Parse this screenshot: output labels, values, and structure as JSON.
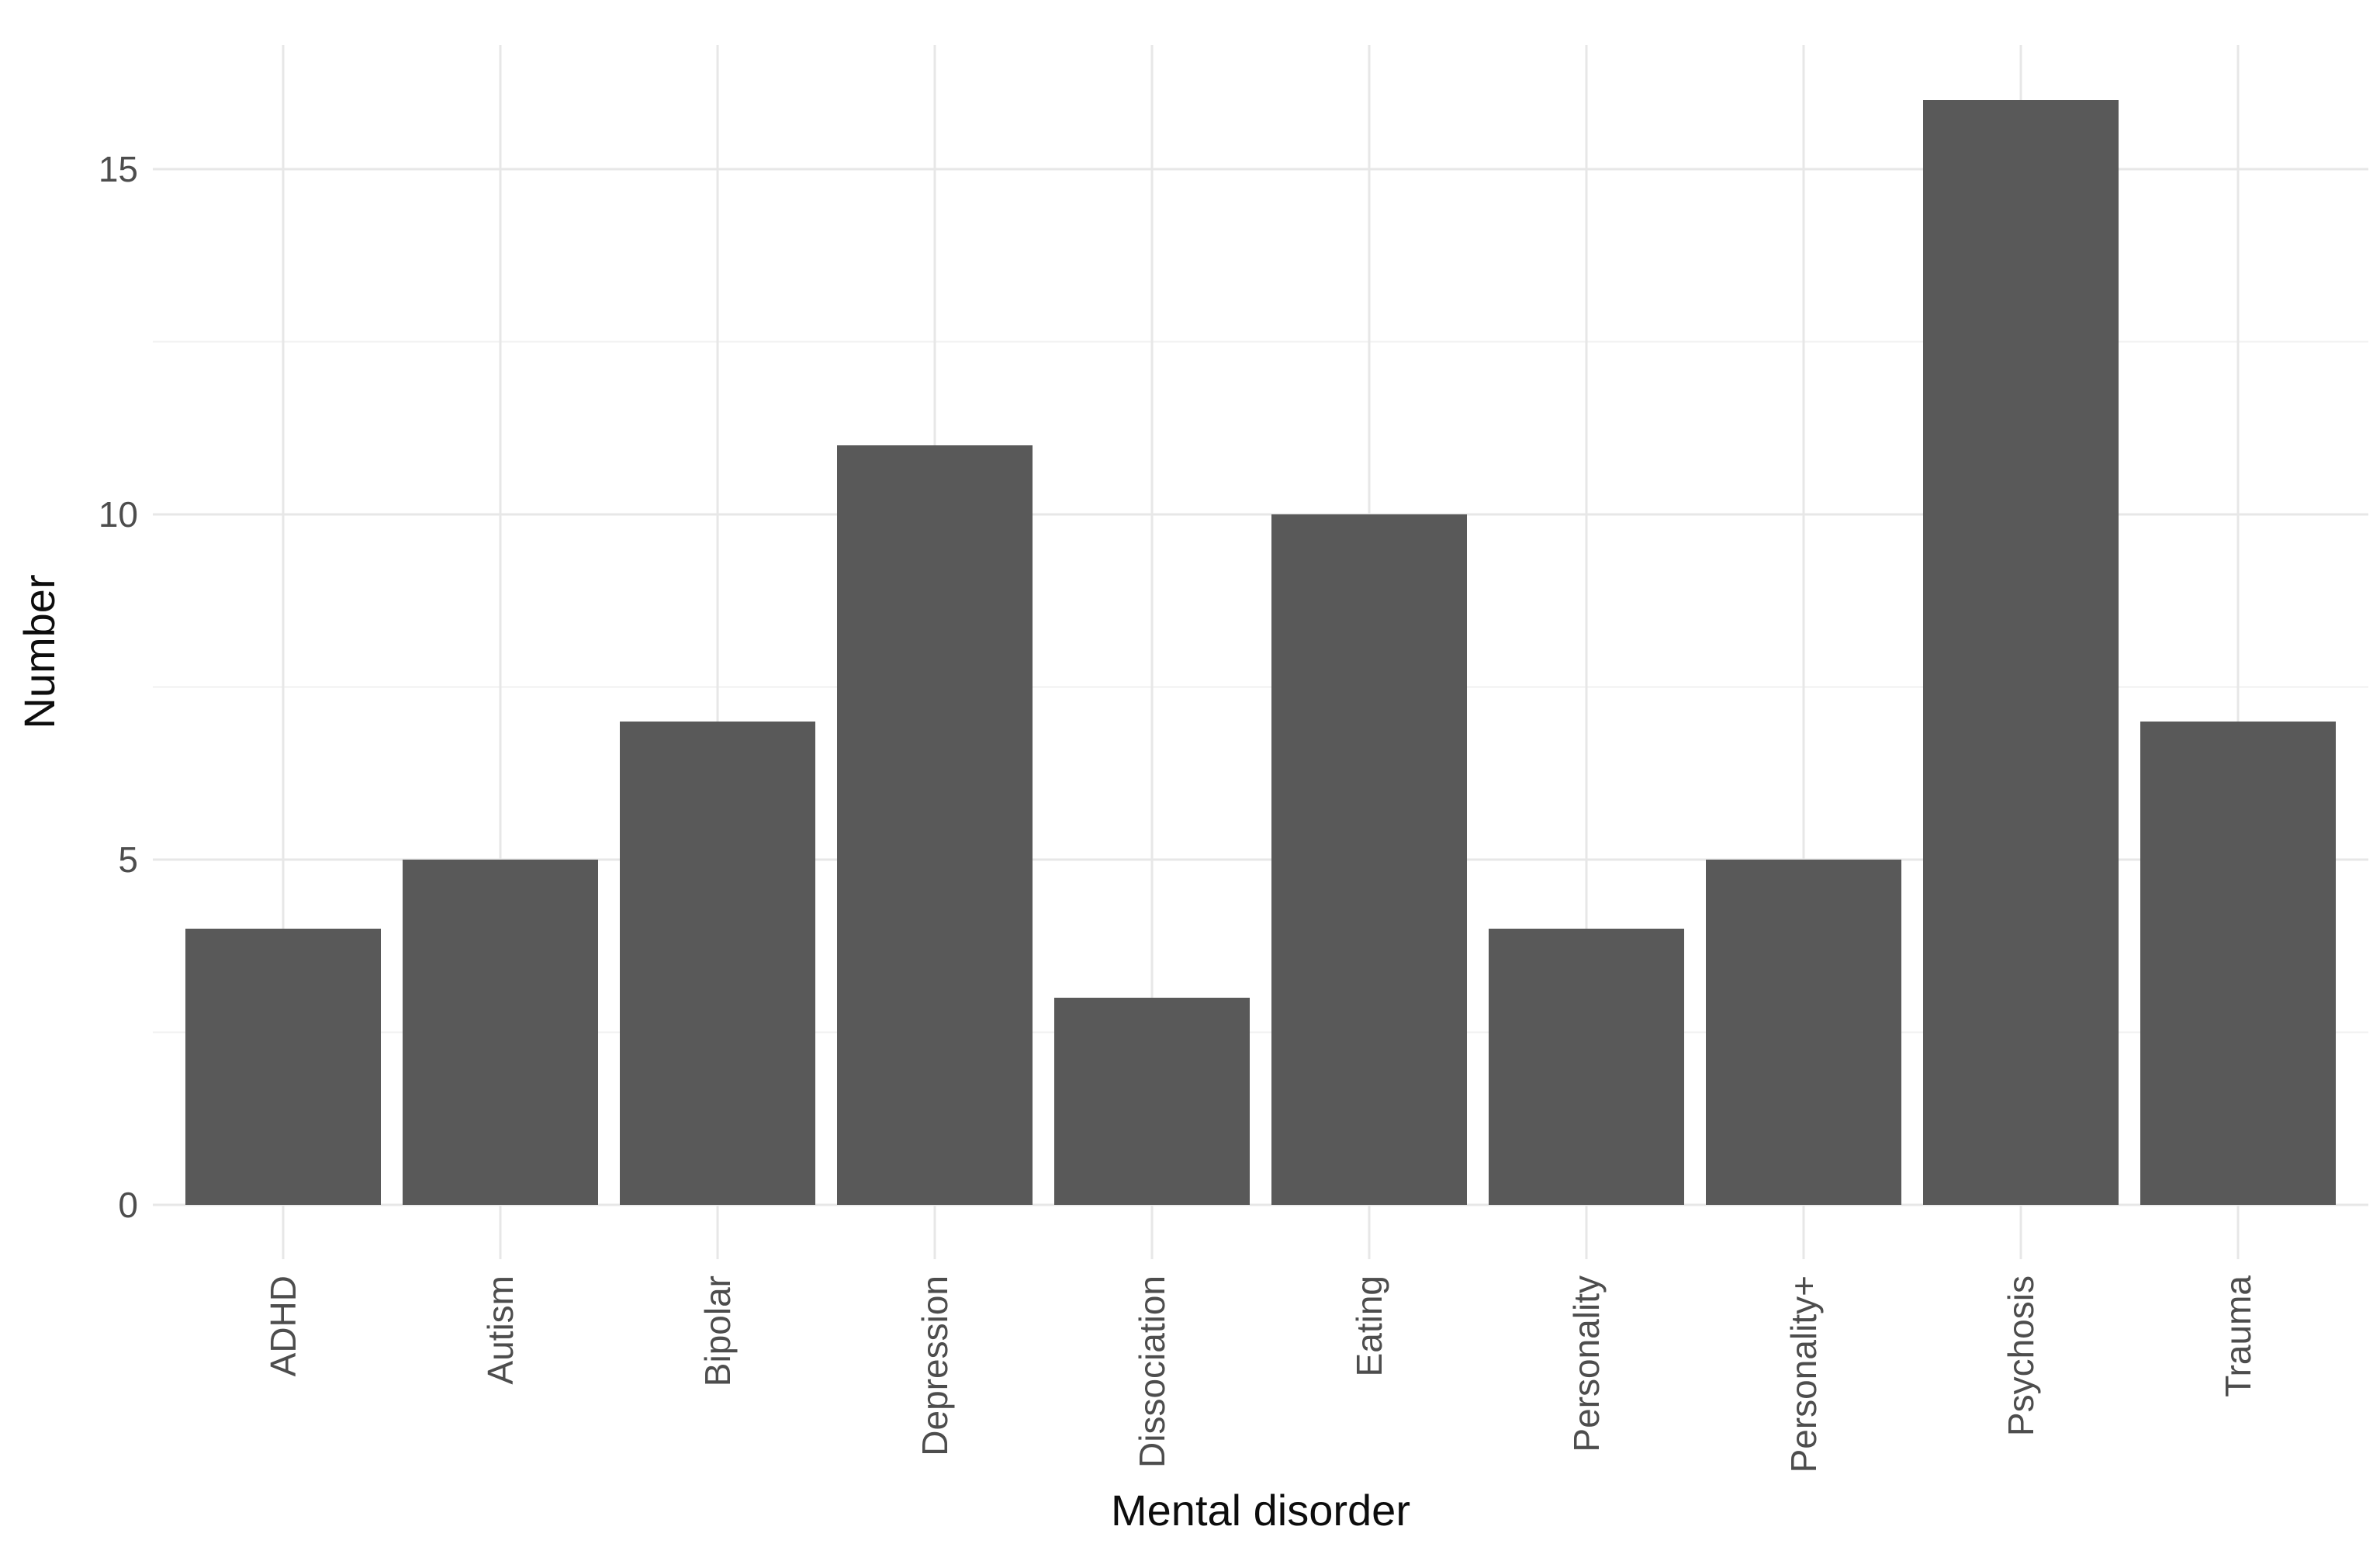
{
  "figure": {
    "background": "#ffffff"
  },
  "chart_data": {
    "type": "bar",
    "title": "",
    "xlabel": "Mental disorder",
    "ylabel": "Number",
    "categories": [
      "ADHD",
      "Autism",
      "Bipolar",
      "Depression",
      "Dissociation",
      "Eating",
      "Personality",
      "Personality+",
      "Psychosis",
      "Trauma"
    ],
    "values": [
      4,
      5,
      7,
      11,
      3,
      10,
      4,
      5,
      16,
      7
    ],
    "y_ticks": [
      0,
      5,
      10,
      15
    ],
    "y_minor_gridlines": [
      2.5,
      7.5,
      12.5
    ],
    "ylim": [
      -0.8,
      16.8
    ],
    "x_label_rotation_deg": 90,
    "grid": "on",
    "legend": "none",
    "bar_color": "#595959",
    "axis_tick_text_color": "#4d4d4d",
    "axis_title_color": "#0d0d0d",
    "grid_major_color": "#e7e7e7",
    "grid_minor_color": "#f0f0f0",
    "background_color": "#ffffff"
  }
}
